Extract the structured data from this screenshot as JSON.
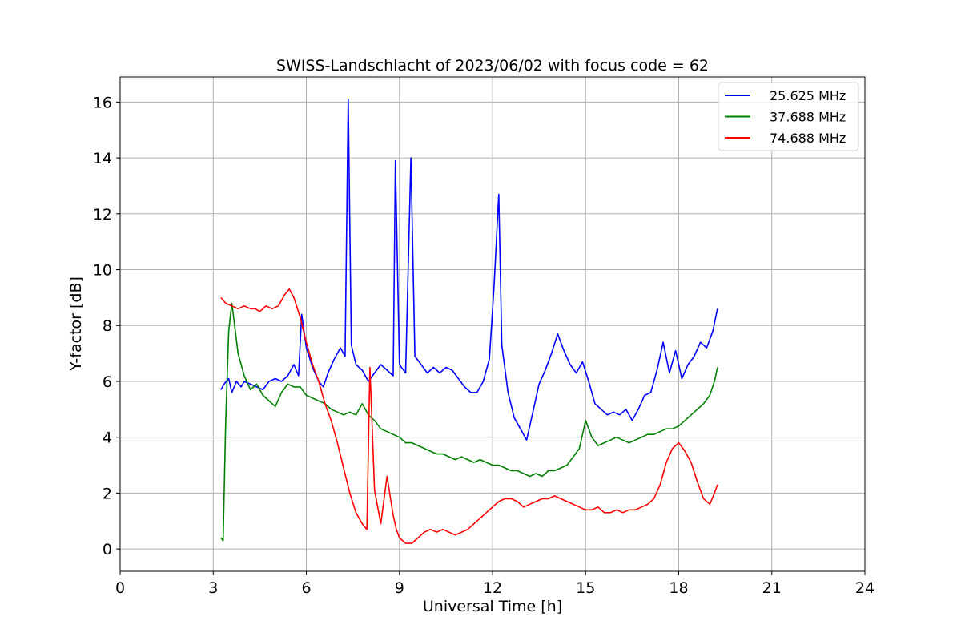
{
  "chart_data": {
    "type": "line",
    "title": "SWISS-Landschlacht of 2023/06/02 with focus code = 62",
    "xlabel": "Universal Time [h]",
    "ylabel": "Y-factor [dB]",
    "xlim": [
      0,
      24
    ],
    "ylim": [
      -0.8,
      16.9
    ],
    "xticks": [
      0,
      3,
      6,
      9,
      12,
      15,
      18,
      21,
      24
    ],
    "yticks": [
      0,
      2,
      4,
      6,
      8,
      10,
      12,
      14,
      16
    ],
    "grid": true,
    "legend_position": "top-right",
    "series": [
      {
        "name": "25.625 MHz",
        "color": "#0000ff",
        "x": [
          3.25,
          3.35,
          3.5,
          3.6,
          3.75,
          3.9,
          4.0,
          4.2,
          4.4,
          4.6,
          4.8,
          5.0,
          5.2,
          5.4,
          5.6,
          5.75,
          5.85,
          6.0,
          6.2,
          6.4,
          6.55,
          6.7,
          6.9,
          7.1,
          7.25,
          7.35,
          7.45,
          7.6,
          7.8,
          8.0,
          8.2,
          8.4,
          8.6,
          8.8,
          8.87,
          9.0,
          9.2,
          9.37,
          9.5,
          9.7,
          9.9,
          10.1,
          10.3,
          10.5,
          10.7,
          10.9,
          11.1,
          11.3,
          11.5,
          11.7,
          11.9,
          12.05,
          12.2,
          12.3,
          12.5,
          12.7,
          12.9,
          13.1,
          13.3,
          13.5,
          13.7,
          13.9,
          14.1,
          14.3,
          14.5,
          14.7,
          14.9,
          15.1,
          15.3,
          15.5,
          15.7,
          15.9,
          16.1,
          16.3,
          16.5,
          16.7,
          16.9,
          17.1,
          17.3,
          17.5,
          17.7,
          17.9,
          18.1,
          18.3,
          18.5,
          18.7,
          18.9,
          19.1,
          19.25
        ],
        "values": [
          5.7,
          5.9,
          6.1,
          5.6,
          6.0,
          5.8,
          6.0,
          5.9,
          5.8,
          5.7,
          6.0,
          6.1,
          6.0,
          6.2,
          6.6,
          6.2,
          8.4,
          7.2,
          6.5,
          6.0,
          5.8,
          6.3,
          6.8,
          7.2,
          6.9,
          16.1,
          7.3,
          6.6,
          6.4,
          6.0,
          6.3,
          6.6,
          6.4,
          6.2,
          13.9,
          6.6,
          6.3,
          14.0,
          6.9,
          6.6,
          6.3,
          6.5,
          6.3,
          6.5,
          6.4,
          6.1,
          5.8,
          5.6,
          5.6,
          6.0,
          6.8,
          9.4,
          12.7,
          7.3,
          5.6,
          4.7,
          4.3,
          3.9,
          4.9,
          5.9,
          6.4,
          7.0,
          7.7,
          7.1,
          6.6,
          6.3,
          6.7,
          6.0,
          5.2,
          5.0,
          4.8,
          4.9,
          4.8,
          5.0,
          4.6,
          5.0,
          5.5,
          5.6,
          6.4,
          7.4,
          6.3,
          7.1,
          6.1,
          6.6,
          6.9,
          7.4,
          7.2,
          7.8,
          8.6
        ]
      },
      {
        "name": "37.688 MHz",
        "color": "#008000",
        "x": [
          3.25,
          3.32,
          3.4,
          3.5,
          3.6,
          3.7,
          3.8,
          4.0,
          4.2,
          4.4,
          4.6,
          4.8,
          5.0,
          5.2,
          5.4,
          5.6,
          5.8,
          6.0,
          6.2,
          6.4,
          6.6,
          6.8,
          7.0,
          7.2,
          7.4,
          7.6,
          7.8,
          8.0,
          8.2,
          8.4,
          8.6,
          8.8,
          9.0,
          9.2,
          9.4,
          9.6,
          9.8,
          10.0,
          10.2,
          10.4,
          10.6,
          10.8,
          11.0,
          11.2,
          11.4,
          11.6,
          11.8,
          12.0,
          12.2,
          12.4,
          12.6,
          12.8,
          13.0,
          13.2,
          13.4,
          13.6,
          13.8,
          14.0,
          14.2,
          14.4,
          14.6,
          14.8,
          15.0,
          15.2,
          15.4,
          15.6,
          15.8,
          16.0,
          16.2,
          16.4,
          16.6,
          16.8,
          17.0,
          17.2,
          17.4,
          17.6,
          17.8,
          18.0,
          18.2,
          18.4,
          18.6,
          18.8,
          19.0,
          19.15,
          19.25
        ],
        "values": [
          0.4,
          0.3,
          4.5,
          7.8,
          8.8,
          7.9,
          7.0,
          6.2,
          5.7,
          5.9,
          5.5,
          5.3,
          5.1,
          5.6,
          5.9,
          5.8,
          5.8,
          5.5,
          5.4,
          5.3,
          5.2,
          5.0,
          4.9,
          4.8,
          4.9,
          4.8,
          5.2,
          4.8,
          4.6,
          4.3,
          4.2,
          4.1,
          4.0,
          3.8,
          3.8,
          3.7,
          3.6,
          3.5,
          3.4,
          3.4,
          3.3,
          3.2,
          3.3,
          3.2,
          3.1,
          3.2,
          3.1,
          3.0,
          3.0,
          2.9,
          2.8,
          2.8,
          2.7,
          2.6,
          2.7,
          2.6,
          2.8,
          2.8,
          2.9,
          3.0,
          3.3,
          3.6,
          4.6,
          4.0,
          3.7,
          3.8,
          3.9,
          4.0,
          3.9,
          3.8,
          3.9,
          4.0,
          4.1,
          4.1,
          4.2,
          4.3,
          4.3,
          4.4,
          4.6,
          4.8,
          5.0,
          5.2,
          5.5,
          6.0,
          6.5
        ]
      },
      {
        "name": "74.688 MHz",
        "color": "#ff0000",
        "x": [
          3.25,
          3.4,
          3.6,
          3.8,
          4.0,
          4.2,
          4.35,
          4.5,
          4.7,
          4.9,
          5.1,
          5.3,
          5.45,
          5.6,
          5.8,
          6.0,
          6.2,
          6.4,
          6.6,
          6.8,
          7.0,
          7.2,
          7.4,
          7.6,
          7.8,
          7.95,
          8.05,
          8.2,
          8.4,
          8.6,
          8.8,
          8.9,
          9.0,
          9.2,
          9.4,
          9.6,
          9.8,
          10.0,
          10.2,
          10.4,
          10.6,
          10.8,
          11.0,
          11.2,
          11.4,
          11.6,
          11.8,
          12.0,
          12.2,
          12.4,
          12.6,
          12.8,
          13.0,
          13.2,
          13.4,
          13.6,
          13.8,
          14.0,
          14.2,
          14.4,
          14.6,
          14.8,
          15.0,
          15.2,
          15.4,
          15.6,
          15.8,
          16.0,
          16.2,
          16.4,
          16.6,
          16.8,
          17.0,
          17.2,
          17.4,
          17.6,
          17.8,
          18.0,
          18.2,
          18.4,
          18.6,
          18.8,
          19.0,
          19.15,
          19.25
        ],
        "values": [
          9.0,
          8.8,
          8.7,
          8.6,
          8.7,
          8.6,
          8.6,
          8.5,
          8.7,
          8.6,
          8.7,
          9.1,
          9.3,
          9.0,
          8.3,
          7.4,
          6.6,
          6.0,
          5.2,
          4.6,
          3.8,
          2.9,
          2.0,
          1.3,
          0.9,
          0.7,
          6.5,
          2.1,
          0.9,
          2.6,
          1.2,
          0.7,
          0.4,
          0.2,
          0.2,
          0.4,
          0.6,
          0.7,
          0.6,
          0.7,
          0.6,
          0.5,
          0.6,
          0.7,
          0.9,
          1.1,
          1.3,
          1.5,
          1.7,
          1.8,
          1.8,
          1.7,
          1.5,
          1.6,
          1.7,
          1.8,
          1.8,
          1.9,
          1.8,
          1.7,
          1.6,
          1.5,
          1.4,
          1.4,
          1.5,
          1.3,
          1.3,
          1.4,
          1.3,
          1.4,
          1.4,
          1.5,
          1.6,
          1.8,
          2.3,
          3.1,
          3.6,
          3.8,
          3.5,
          3.1,
          2.4,
          1.8,
          1.6,
          2.0,
          2.3
        ]
      }
    ]
  }
}
